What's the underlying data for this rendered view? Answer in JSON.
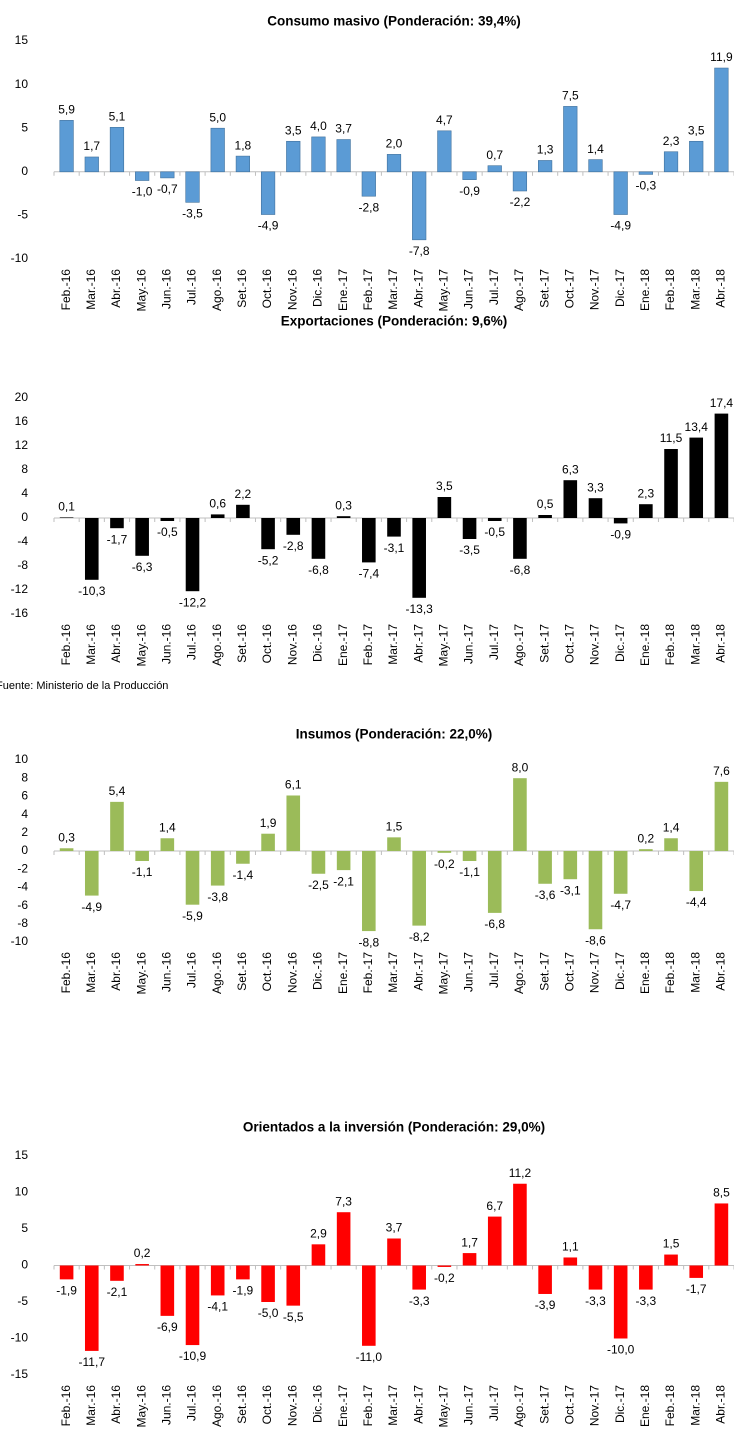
{
  "chart_data": [
    {
      "type": "bar",
      "title": "Consumo masivo (Ponderación: 39,4%)",
      "color": "#5b9bd5",
      "categories": [
        "Feb.-16",
        "Mar.-16",
        "Abr.-16",
        "May.-16",
        "Jun.-16",
        "Jul.-16",
        "Ago.-16",
        "Set.-16",
        "Oct.-16",
        "Nov.-16",
        "Dic.-16",
        "Ene.-17",
        "Feb.-17",
        "Mar.-17",
        "Abr.-17",
        "May.-17",
        "Jun.-17",
        "Jul.-17",
        "Ago.-17",
        "Set.-17",
        "Oct.-17",
        "Nov.-17",
        "Dic.-17",
        "Ene.-18",
        "Feb.-18",
        "Mar.-18",
        "Abr.-18"
      ],
      "values": [
        5.9,
        1.7,
        5.1,
        -1.0,
        -0.7,
        -3.5,
        5.0,
        1.8,
        -4.9,
        3.5,
        4.0,
        3.7,
        -2.8,
        2.0,
        -7.8,
        4.7,
        -0.9,
        0.7,
        -2.2,
        1.3,
        7.5,
        1.4,
        -4.9,
        -0.3,
        2.3,
        3.5,
        11.9
      ],
      "value_labels": [
        "5,9",
        "1,7",
        "5,1",
        "-1,0",
        "-0,7",
        "-3,5",
        "5,0",
        "1,8",
        "-4,9",
        "3,5",
        "4,0",
        "3,7",
        "-2,8",
        "2,0",
        "-7,8",
        "4,7",
        "-0,9",
        "0,7",
        "-2,2",
        "1,3",
        "7,5",
        "1,4",
        "-4,9",
        "-0,3",
        "2,3",
        "3,5",
        "11,9"
      ],
      "ylim": [
        -10,
        15
      ],
      "yticks": [
        -10,
        -5,
        0,
        5,
        10,
        15
      ]
    },
    {
      "type": "bar",
      "title": "Exportaciones (Ponderación: 9,6%)",
      "color": "#000000",
      "categories": [
        "Feb.-16",
        "Mar.-16",
        "Abr.-16",
        "May.-16",
        "Jun.-16",
        "Jul.-16",
        "Ago.-16",
        "Set.-16",
        "Oct.-16",
        "Nov.-16",
        "Dic.-16",
        "Ene.-17",
        "Feb.-17",
        "Mar.-17",
        "Abr.-17",
        "May.-17",
        "Jun.-17",
        "Jul.-17",
        "Ago.-17",
        "Set.-17",
        "Oct.-17",
        "Nov.-17",
        "Dic.-17",
        "Ene.-18",
        "Feb.-18",
        "Mar.-18",
        "Abr.-18"
      ],
      "values": [
        0.1,
        -10.3,
        -1.7,
        -6.3,
        -0.5,
        -12.2,
        0.6,
        2.2,
        -5.2,
        -2.8,
        -6.8,
        0.3,
        -7.4,
        -3.1,
        -13.3,
        3.5,
        -3.5,
        -0.5,
        -6.8,
        0.5,
        6.3,
        3.3,
        -0.9,
        2.3,
        11.5,
        13.4,
        17.4
      ],
      "value_labels": [
        "0,1",
        "-10,3",
        "-1,7",
        "-6,3",
        "-0,5",
        "-12,2",
        "0,6",
        "2,2",
        "-5,2",
        "-2,8",
        "-6,8",
        "0,3",
        "-7,4",
        "-3,1",
        "-13,3",
        "3,5",
        "-3,5",
        "-0,5",
        "-6,8",
        "0,5",
        "6,3",
        "3,3",
        "-0,9",
        "2,3",
        "11,5",
        "13,4",
        "17,4"
      ],
      "ylim": [
        -16,
        20
      ],
      "yticks": [
        -16,
        -12,
        -8,
        -4,
        0,
        4,
        8,
        12,
        16,
        20
      ]
    },
    {
      "type": "bar",
      "title": "Insumos (Ponderación: 22,0%)",
      "color": "#9bbb59",
      "categories": [
        "Feb.-16",
        "Mar.-16",
        "Abr.-16",
        "May.-16",
        "Jun.-16",
        "Jul.-16",
        "Ago.-16",
        "Set.-16",
        "Oct.-16",
        "Nov.-16",
        "Dic.-16",
        "Ene.-17",
        "Feb.-17",
        "Mar.-17",
        "Abr.-17",
        "May.-17",
        "Jun.-17",
        "Jul.-17",
        "Ago.-17",
        "Set.-17",
        "Oct.-17",
        "Nov.-17",
        "Dic.-17",
        "Ene.-18",
        "Feb.-18",
        "Mar.-18",
        "Abr.-18"
      ],
      "values": [
        0.3,
        -4.9,
        5.4,
        -1.1,
        1.4,
        -5.9,
        -3.8,
        -1.4,
        1.9,
        6.1,
        -2.5,
        -2.1,
        -8.8,
        1.5,
        -8.2,
        -0.2,
        -1.1,
        -6.8,
        8.0,
        -3.6,
        -3.1,
        -8.6,
        -4.7,
        0.2,
        1.4,
        -4.4,
        7.6
      ],
      "value_labels": [
        "0,3",
        "-4,9",
        "5,4",
        "-1,1",
        "1,4",
        "-5,9",
        "-3,8",
        "-1,4",
        "1,9",
        "6,1",
        "-2,5",
        "-2,1",
        "-8,8",
        "1,5",
        "-8,2",
        "-0,2",
        "-1,1",
        "-6,8",
        "8,0",
        "-3,6",
        "-3,1",
        "-8,6",
        "-4,7",
        "0,2",
        "1,4",
        "-4,4",
        "7,6"
      ],
      "ylim": [
        -10,
        10
      ],
      "yticks": [
        -10,
        -8,
        -6,
        -4,
        -2,
        0,
        2,
        4,
        6,
        8,
        10
      ]
    },
    {
      "type": "bar",
      "title": "Orientados a la inversión (Ponderación: 29,0%)",
      "color": "#ff0000",
      "categories": [
        "Feb.-16",
        "Mar.-16",
        "Abr.-16",
        "May.-16",
        "Jun.-16",
        "Jul.-16",
        "Ago.-16",
        "Set.-16",
        "Oct.-16",
        "Nov.-16",
        "Dic.-16",
        "Ene.-17",
        "Feb.-17",
        "Mar.-17",
        "Abr.-17",
        "May.-17",
        "Jun.-17",
        "Jul.-17",
        "Ago.-17",
        "Set.-17",
        "Oct.-17",
        "Nov.-17",
        "Dic.-17",
        "Ene.-18",
        "Feb.-18",
        "Mar.-18",
        "Abr.-18"
      ],
      "values": [
        -1.9,
        -11.7,
        -2.1,
        0.2,
        -6.9,
        -10.9,
        -4.1,
        -1.9,
        -5.0,
        -5.5,
        2.9,
        7.3,
        -11.0,
        3.7,
        -3.3,
        -0.2,
        1.7,
        6.7,
        11.2,
        -3.9,
        1.1,
        -3.3,
        -10.0,
        -3.3,
        1.5,
        -1.7,
        8.5
      ],
      "value_labels": [
        "-1,9",
        "-11,7",
        "-2,1",
        "0,2",
        "-6,9",
        "-10,9",
        "-4,1",
        "-1,9",
        "-5,0",
        "-5,5",
        "2,9",
        "7,3",
        "-11,0",
        "3,7",
        "-3,3",
        "-0,2",
        "1,7",
        "6,7",
        "11,2",
        "-3,9",
        "1,1",
        "-3,3",
        "-10,0",
        "-3,3",
        "1,5",
        "-1,7",
        "8,5"
      ],
      "ylim": [
        -15,
        15
      ],
      "yticks": [
        -15,
        -10,
        -5,
        0,
        5,
        10,
        15
      ]
    }
  ],
  "source": "Fuente: Ministerio de la Producción"
}
